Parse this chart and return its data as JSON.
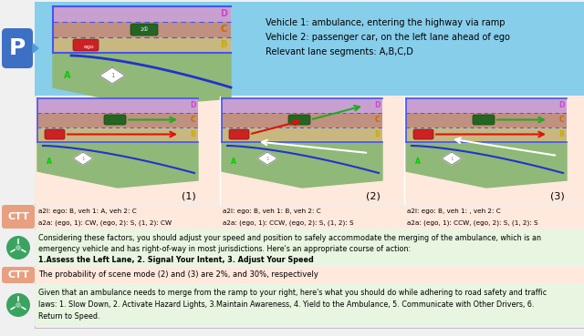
{
  "bg_color": "#f0f0f0",
  "top_bg": "#87CEEB",
  "top_section_text_line1": "Vehicle 1: ambulance, entering the highway via ramp",
  "top_section_text_line2": "Vehicle 2: passenger car, on the left lane ahead of ego",
  "top_section_text_line3": "Relevant lane segments: A,B,C,D",
  "p_label_color": "#3D6FC4",
  "p_label_text": "P",
  "ctt_label_color": "#E8A080",
  "ctt_label_text": "CTT",
  "scenario_bg_color": "#FFE8DC",
  "scenario_labels": [
    "(1)",
    "(2)",
    "(3)"
  ],
  "ctt_row1_texts": [
    "a2l: ego: B, veh 1: A, veh 2: C\na2a: (ego, 1): CW, (ego, 2): S, (1, 2): CW",
    "a2l: ego: B, veh 1: B, veh 2: C\na2a: (ego, 1): CCW, (ego, 2): S, (1, 2): S",
    "a2l: ego: B, veh 1: , veh 2: C\na2a: (ego, 1): CCW, (ego, 2): S, (1, 2): S"
  ],
  "gpt_text1_lines": [
    "Considering these factors, you should adjust your speed and position to safely accommodate the merging of the ambulance, which is an",
    "emergency vehicle and has right-of-way in most jurisdictions. Here's an appropriate course of action:",
    "1.Assess the Left Lane, 2. Signal Your Intent, 3. Adjust Your Speed"
  ],
  "gpt1_bold_line": 2,
  "ctt_row2_text": "The probability of scene mode (2) and (3) are 2%, and 30%, respectively",
  "gpt_text2_lines": [
    "Given that an ambulance needs to merge from the ramp to your right, here's what you should do while adhering to road safety and traffic",
    "laws: 1. Slow Down, 2. Activate Hazard Lights, 3.Maintain Awareness, 4. Yield to the Ambulance, 5. Communicate with Other Drivers, 6.",
    "Return to Speed."
  ],
  "gpt_bg": "#E8F5E0",
  "lane_color_D": "#C8A0D0",
  "lane_color_C": "#C09080",
  "lane_color_B": "#C8B880",
  "lane_label_D_color": "#CC44CC",
  "lane_label_C_color": "#CC6600",
  "lane_label_B_color": "#CCAA00",
  "ramp_color": "#90B878",
  "road_line_color": "#4455EE",
  "ego_color": "#CC2222",
  "veh2_color": "#226622",
  "ambulance_color": "#FFFFFF"
}
